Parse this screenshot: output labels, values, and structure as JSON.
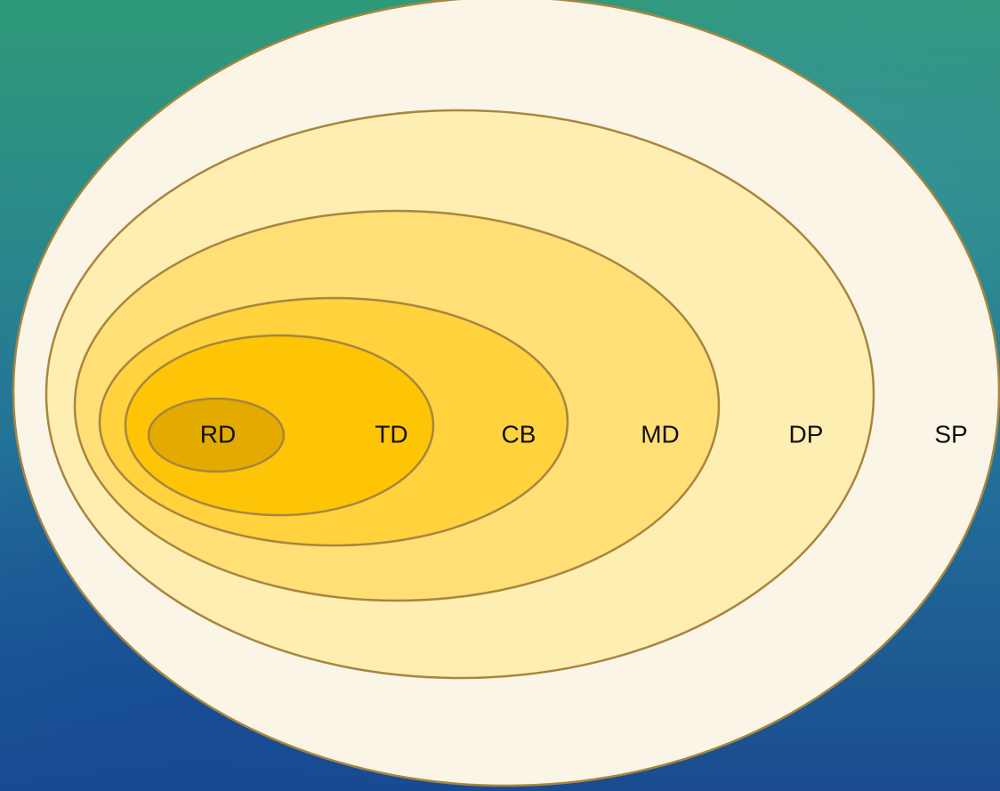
{
  "diagram": {
    "rings": [
      {
        "label": "SP",
        "fill": "#fbf5e8"
      },
      {
        "label": "DP",
        "fill": "#ffeeb2"
      },
      {
        "label": "MD",
        "fill": "#ffdf76"
      },
      {
        "label": "CB",
        "fill": "#ffd23e"
      },
      {
        "label": "TD",
        "fill": "#fec506"
      },
      {
        "label": "RD",
        "fill": "#e3aa00"
      }
    ],
    "outline_color": "#a8863e"
  }
}
